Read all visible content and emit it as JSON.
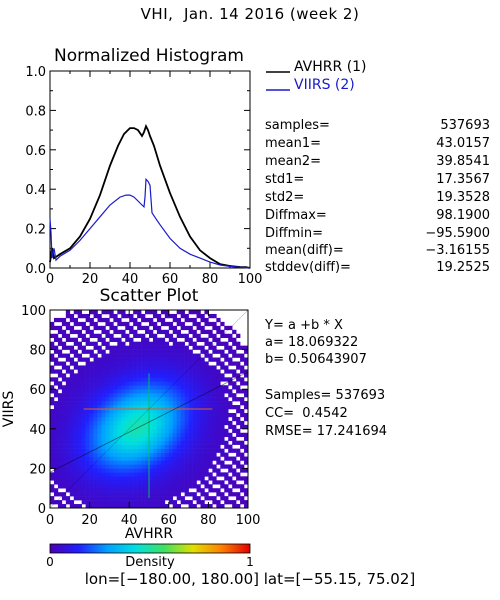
{
  "title": "VHI,  Jan. 14 2016 (week 2)",
  "histogram": {
    "title": "Normalized Histogram",
    "legend": [
      {
        "label": "AVHRR (1)",
        "color": "#000000"
      },
      {
        "label": "VIIRS (2)",
        "color": "#1a1acc"
      }
    ],
    "stats": [
      {
        "label": "samples=",
        "value": "537693"
      },
      {
        "label": "mean1=",
        "value": "43.0157"
      },
      {
        "label": "mean2=",
        "value": "39.8541"
      },
      {
        "label": "std1=",
        "value": "17.3567"
      },
      {
        "label": "std2=",
        "value": "19.3528"
      },
      {
        "label": "Diffmax=",
        "value": "98.1900"
      },
      {
        "label": "Diffmin=",
        "value": "−95.5900"
      },
      {
        "label": "mean(diff)=",
        "value": "−3.16155"
      },
      {
        "label": "stddev(diff)=",
        "value": "19.2525"
      }
    ]
  },
  "scatter": {
    "title": "Scatter Plot",
    "xlabel": "AVHRR",
    "ylabel": "VIIRS",
    "regression": [
      "Y= a +b * X",
      "a= 18.069322",
      "b= 0.50643907",
      "",
      "Samples= 537693",
      "CC=  0.4542",
      "RMSE= 17.241694"
    ],
    "colorbar": {
      "label": "Density",
      "min": "0",
      "max": "1"
    }
  },
  "footer": "lon=[−180.00, 180.00] lat=[−55.15, 75.02]",
  "chart_data": [
    {
      "type": "line",
      "title": "Normalized Histogram",
      "xlim": [
        0,
        100
      ],
      "ylim": [
        0,
        1.0
      ],
      "xticks": [
        "0",
        "20",
        "40",
        "60",
        "80",
        "100"
      ],
      "yticks": [
        "0.0",
        "0.2",
        "0.4",
        "0.6",
        "0.8",
        "1.0"
      ],
      "series": [
        {
          "name": "AVHRR (1)",
          "color": "#000000",
          "x": [
            0,
            1,
            2,
            5,
            10,
            15,
            20,
            25,
            30,
            34,
            37,
            40,
            42,
            44,
            46,
            47,
            48,
            49,
            50,
            52,
            55,
            60,
            65,
            70,
            75,
            80,
            85,
            90,
            95,
            98,
            100
          ],
          "y": [
            0.03,
            0.1,
            0.05,
            0.07,
            0.1,
            0.16,
            0.25,
            0.37,
            0.52,
            0.62,
            0.68,
            0.71,
            0.71,
            0.7,
            0.67,
            0.69,
            0.72,
            0.7,
            0.67,
            0.62,
            0.52,
            0.38,
            0.26,
            0.16,
            0.09,
            0.05,
            0.02,
            0.01,
            0.005,
            0.004,
            0.0
          ]
        },
        {
          "name": "VIIRS (2)",
          "color": "#1a1acc",
          "x": [
            0,
            0.5,
            1,
            2,
            3,
            5,
            10,
            15,
            20,
            25,
            30,
            35,
            38,
            40,
            42,
            44,
            46,
            47,
            47.5,
            48,
            49,
            50,
            51,
            53,
            55,
            60,
            65,
            70,
            75,
            80,
            85,
            90,
            95,
            100
          ],
          "y": [
            0.25,
            0.18,
            0.05,
            0.1,
            0.04,
            0.06,
            0.09,
            0.14,
            0.2,
            0.26,
            0.32,
            0.36,
            0.37,
            0.37,
            0.36,
            0.34,
            0.32,
            0.31,
            0.36,
            0.45,
            0.44,
            0.42,
            0.28,
            0.25,
            0.22,
            0.15,
            0.1,
            0.07,
            0.05,
            0.03,
            0.015,
            0.008,
            0.004,
            0.0
          ]
        }
      ]
    },
    {
      "type": "scatter",
      "title": "Scatter Plot",
      "xlabel": "AVHRR",
      "ylabel": "VIIRS",
      "xlim": [
        0,
        100
      ],
      "ylim": [
        0,
        100
      ],
      "xticks": [
        "0",
        "20",
        "40",
        "60",
        "80",
        "100"
      ],
      "yticks": [
        "0",
        "20",
        "40",
        "60",
        "80",
        "100"
      ],
      "samples": 537693,
      "regression": {
        "a": 18.069322,
        "b": 0.50643907
      },
      "density_center": [
        43,
        40
      ],
      "colormap": [
        "#4b00b4",
        "#2020ff",
        "#00a0ff",
        "#00e0e0",
        "#40e060",
        "#e0e000",
        "#ff8000",
        "#e00000"
      ]
    }
  ]
}
